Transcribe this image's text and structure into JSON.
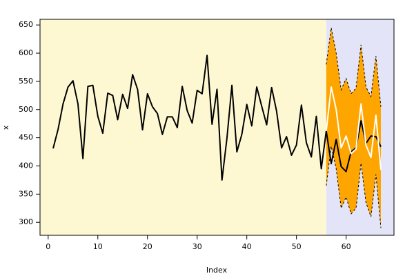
{
  "chart_data": {
    "type": "line",
    "xlabel": "Index",
    "ylabel": "x",
    "xlim": [
      -1.64,
      69.64
    ],
    "ylim": [
      277,
      660
    ],
    "xticks": [
      0,
      10,
      20,
      30,
      40,
      50,
      60
    ],
    "yticks": [
      300,
      350,
      400,
      450,
      500,
      550,
      600,
      650
    ],
    "forecast_start": 56,
    "background_colors": [
      "#fdf8d2",
      "#e4e4f8"
    ],
    "band": {
      "fill": "#ffa500",
      "x": [
        56,
        57,
        58,
        59,
        60,
        61,
        62,
        63,
        64,
        65,
        66,
        67
      ],
      "upper": [
        580,
        645,
        600,
        535,
        555,
        528,
        538,
        615,
        540,
        523,
        595,
        505
      ],
      "lower": [
        365,
        435,
        395,
        325,
        345,
        315,
        325,
        405,
        335,
        310,
        385,
        290
      ]
    },
    "series": [
      {
        "color": "#000000",
        "width": 2,
        "x": [
          1,
          2,
          3,
          4,
          5,
          6,
          7,
          8,
          9,
          10,
          11,
          12,
          13,
          14,
          15,
          16,
          17,
          18,
          19,
          20,
          21,
          22,
          23,
          24,
          25,
          26,
          27,
          28,
          29,
          30,
          31,
          32,
          33,
          34,
          35,
          36,
          37,
          38,
          39,
          40,
          41,
          42,
          43,
          44,
          45,
          46,
          47,
          48,
          49,
          50,
          51,
          52,
          53,
          54,
          55,
          56,
          57,
          58,
          59,
          60,
          61,
          62,
          63,
          64,
          65,
          66,
          67
        ],
        "values": [
          431,
          465,
          510,
          540,
          551,
          510,
          413,
          541,
          543,
          488,
          458,
          529,
          525,
          482,
          527,
          502,
          562,
          536,
          464,
          528,
          505,
          493,
          456,
          487,
          487,
          468,
          541,
          498,
          476,
          534,
          528,
          596,
          474,
          536,
          375,
          449,
          543,
          425,
          456,
          509,
          471,
          540,
          506,
          473,
          539,
          497,
          432,
          452,
          419,
          437,
          508,
          441,
          416,
          488,
          395,
          462,
          404,
          447,
          399,
          390,
          425,
          432,
          480,
          440,
          453,
          452,
          434
        ]
      },
      {
        "color": "#ffffff",
        "width": 2,
        "x": [
          56,
          57,
          58,
          59,
          60,
          61,
          62,
          63,
          64,
          65,
          66,
          67
        ],
        "values": [
          462,
          540,
          500,
          432,
          453,
          422,
          430,
          510,
          437,
          415,
          490,
          393
        ]
      }
    ]
  }
}
